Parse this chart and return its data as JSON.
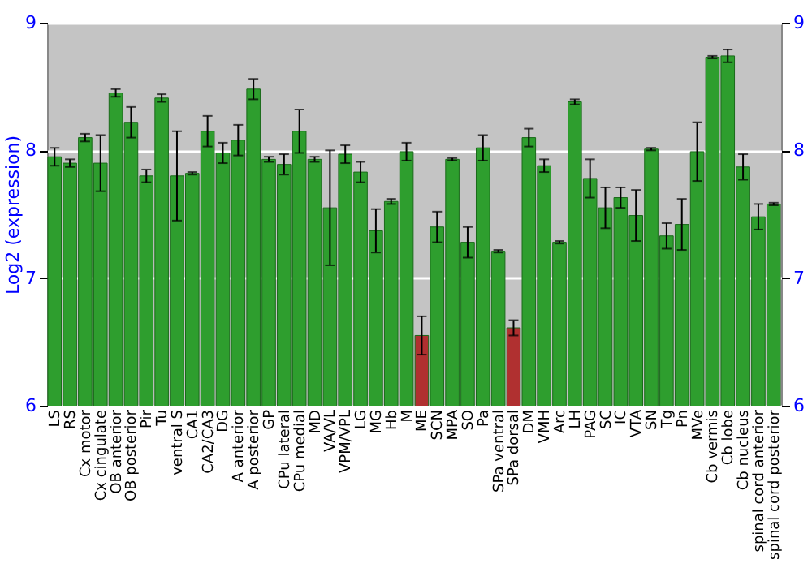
{
  "chart_data": {
    "type": "bar",
    "categories": [
      "LS",
      "RS",
      "Cx motor",
      "Cx cingulate",
      "OB anterior",
      "OB posterior",
      "Pir",
      "Tu",
      "ventral S",
      "CA1",
      "CA2/CA3",
      "DG",
      "A anterior",
      "A posterior",
      "GP",
      "CPu lateral",
      "CPu medial",
      "MD",
      "VA/VL",
      "VPM/VPL",
      "LG",
      "MG",
      "Hb",
      "M",
      "ME",
      "SCN",
      "MPA",
      "SO",
      "Pa",
      "SPa ventral",
      "SPa dorsal",
      "DM",
      "VMH",
      "Arc",
      "LH",
      "PAG",
      "SC",
      "IC",
      "VTA",
      "SN",
      "Tg",
      "Pn",
      "MVe",
      "Cb vermis",
      "Cb lobe",
      "Cb nucleus",
      "spinal cord anterior",
      "spinal cord posterior"
    ],
    "values": [
      7.95,
      7.9,
      8.1,
      7.9,
      8.45,
      8.22,
      7.8,
      8.41,
      7.8,
      7.82,
      8.15,
      7.98,
      8.08,
      8.48,
      7.93,
      7.89,
      8.15,
      7.93,
      7.55,
      7.97,
      7.83,
      7.37,
      7.6,
      7.99,
      6.55,
      7.4,
      7.93,
      7.28,
      8.02,
      7.21,
      6.61,
      8.1,
      7.88,
      7.28,
      8.38,
      7.78,
      7.55,
      7.63,
      7.49,
      8.01,
      7.33,
      7.42,
      7.99,
      8.73,
      8.74,
      7.87,
      7.48,
      7.58
    ],
    "errors": [
      0.07,
      0.03,
      0.03,
      0.22,
      0.03,
      0.12,
      0.05,
      0.03,
      0.35,
      0.01,
      0.12,
      0.08,
      0.12,
      0.08,
      0.02,
      0.08,
      0.17,
      0.02,
      0.45,
      0.07,
      0.08,
      0.17,
      0.02,
      0.07,
      0.15,
      0.12,
      0.01,
      0.12,
      0.1,
      0.01,
      0.06,
      0.07,
      0.05,
      0.01,
      0.02,
      0.15,
      0.16,
      0.08,
      0.2,
      0.01,
      0.1,
      0.2,
      0.23,
      0.01,
      0.05,
      0.1,
      0.1,
      0.01
    ],
    "colors": [
      "#2e9e2e",
      "#2e9e2e",
      "#2e9e2e",
      "#2e9e2e",
      "#2e9e2e",
      "#2e9e2e",
      "#2e9e2e",
      "#2e9e2e",
      "#2e9e2e",
      "#2e9e2e",
      "#2e9e2e",
      "#2e9e2e",
      "#2e9e2e",
      "#2e9e2e",
      "#2e9e2e",
      "#2e9e2e",
      "#2e9e2e",
      "#2e9e2e",
      "#2e9e2e",
      "#2e9e2e",
      "#2e9e2e",
      "#2e9e2e",
      "#2e9e2e",
      "#2e9e2e",
      "#b03030",
      "#2e9e2e",
      "#2e9e2e",
      "#2e9e2e",
      "#2e9e2e",
      "#2e9e2e",
      "#b03030",
      "#2e9e2e",
      "#2e9e2e",
      "#2e9e2e",
      "#2e9e2e",
      "#2e9e2e",
      "#2e9e2e",
      "#2e9e2e",
      "#2e9e2e",
      "#2e9e2e",
      "#2e9e2e",
      "#2e9e2e",
      "#2e9e2e",
      "#2e9e2e",
      "#2e9e2e",
      "#2e9e2e",
      "#2e9e2e",
      "#2e9e2e"
    ],
    "ylabel": "Log2 (expression)",
    "ylim": [
      6,
      9
    ],
    "yticks": [
      6,
      7,
      8,
      9
    ],
    "y2lim": [
      6,
      9
    ],
    "y2ticks": [
      6,
      7,
      8,
      9
    ],
    "grid": "y"
  }
}
